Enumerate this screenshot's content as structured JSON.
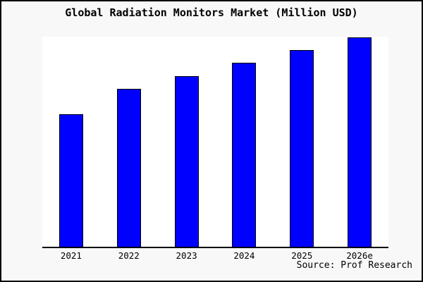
{
  "title": "Global Radiation Monitors Market (Million USD)",
  "source": "Source: Prof Research",
  "colors": {
    "frame_background": "#f8f8f8",
    "plot_background": "#ffffff",
    "bar_fill": "#0000ff",
    "bar_border": "#000000",
    "axis": "#000000",
    "text": "#000000"
  },
  "chart_data": {
    "type": "bar",
    "title": "Global Radiation Monitors Market (Million USD)",
    "categories": [
      "2021",
      "2022",
      "2023",
      "2024",
      "2025",
      "2026e"
    ],
    "values": [
      189,
      225,
      244,
      263,
      281,
      299
    ],
    "value_note": "no y-axis or data labels shown; values are relative units estimated from bar heights",
    "xlabel": "",
    "ylabel": "",
    "ylim": [
      0,
      300
    ],
    "grid": false,
    "legend": false,
    "annotations": [
      "Source: Prof Research"
    ]
  }
}
